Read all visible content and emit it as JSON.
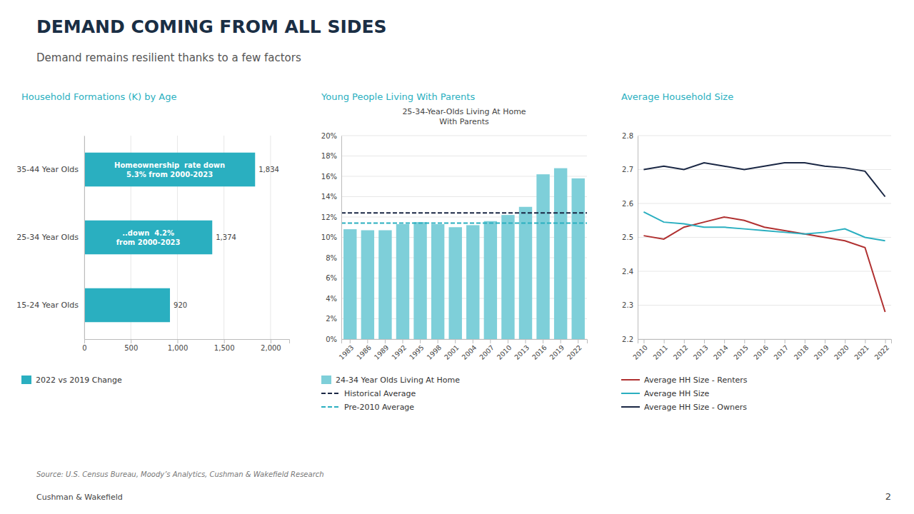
{
  "title": "DEMAND COMING FROM ALL SIDES",
  "subtitle": "Demand remains resilient thanks to a few factors",
  "annotations": [
    "Source: U.S. Census Bureau, Moody’s Analytics, Cushman & Wakefield Research",
    "Cushman & Wakefield",
    "2"
  ],
  "chart_data": [
    {
      "type": "bar",
      "orientation": "horizontal",
      "title": "Household Formations (K) by Age",
      "categories": [
        "35-44 Year Olds",
        "25-34 Year Olds",
        "15-24 Year Olds"
      ],
      "series": [
        {
          "name": "2022 vs 2019 Change",
          "color": "#2aafc0",
          "values": [
            1834,
            1374,
            920
          ],
          "value_labels": [
            "1,834",
            "1,374",
            "920"
          ]
        }
      ],
      "xlim": [
        0,
        2200
      ],
      "xticks": [
        0,
        500,
        {
          "value": 1000,
          "label": "1,000"
        },
        {
          "value": 1500,
          "label": "1,500"
        },
        {
          "value": 2000,
          "label": "2,000"
        }
      ],
      "grid": true,
      "legend": "bottom",
      "data_labels": true,
      "annotations": [
        "Homeownership  rate down\n5.3% from 2000-2023",
        "..down  4.2%\nfrom 2000-2023"
      ]
    },
    {
      "type": "bar",
      "title": "Young People Living With Parents",
      "subtitle": [
        "25-34-Year-Olds Living At Home",
        "With Parents"
      ],
      "categories": [
        "1983",
        "1986",
        "1989",
        "1992",
        "1995",
        "1998",
        "2001",
        "2004",
        "2007",
        "2010",
        "2013",
        "2016",
        "2019",
        "2022"
      ],
      "series": [
        {
          "name": "24-34 Year Olds Living At Home",
          "color": "#7ecfd9",
          "values": [
            0.108,
            0.107,
            0.107,
            0.113,
            0.115,
            0.113,
            0.11,
            0.112,
            0.116,
            0.122,
            0.13,
            0.162,
            0.168,
            0.158
          ]
        }
      ],
      "reference_lines": [
        {
          "name": "Historical Average",
          "value": 0.124,
          "color": "#1a2744",
          "line_style": "dashed"
        },
        {
          "name": "Pre-2010 Average",
          "value": 0.114,
          "color": "#2aafc0",
          "line_style": "dashed"
        }
      ],
      "ylim": [
        0,
        0.2
      ],
      "yticks": [
        {
          "value": 0,
          "label": "0%"
        },
        {
          "value": 0.02,
          "label": "2%"
        },
        {
          "value": 0.04,
          "label": "4%"
        },
        {
          "value": 0.06,
          "label": "6%"
        },
        {
          "value": 0.08,
          "label": "8%"
        },
        {
          "value": 0.1,
          "label": "10%"
        },
        {
          "value": 0.12,
          "label": "12%"
        },
        {
          "value": 0.14,
          "label": "14%"
        },
        {
          "value": 0.16,
          "label": "16%"
        },
        {
          "value": 0.18,
          "label": "18%"
        },
        {
          "value": 0.2,
          "label": "20%"
        }
      ],
      "grid": true,
      "legend": "bottom"
    },
    {
      "type": "line",
      "title": "Average Household Size",
      "x": [
        2010,
        2011,
        2012,
        2013,
        2014,
        2015,
        2016,
        2017,
        2018,
        2019,
        2020,
        2021,
        2022
      ],
      "series": [
        {
          "name": "Average HH Size - Renters",
          "color": "#b03030",
          "values": [
            2.505,
            2.495,
            2.53,
            2.545,
            2.56,
            2.55,
            2.53,
            2.52,
            2.51,
            2.5,
            2.49,
            2.47,
            2.28
          ]
        },
        {
          "name": "Average HH Size",
          "color": "#2aafc0",
          "values": [
            2.575,
            2.545,
            2.54,
            2.53,
            2.53,
            2.525,
            2.52,
            2.515,
            2.51,
            2.515,
            2.525,
            2.5,
            2.49
          ]
        },
        {
          "name": "Average HH Size - Owners",
          "color": "#1a2744",
          "values": [
            2.7,
            2.71,
            2.7,
            2.72,
            2.71,
            2.7,
            2.71,
            2.72,
            2.72,
            2.71,
            2.705,
            2.695,
            2.62
          ]
        }
      ],
      "xlim": [
        2009.7,
        2022.3
      ],
      "xticks": [
        2010,
        2011,
        2012,
        2013,
        2014,
        2015,
        2016,
        2017,
        2018,
        2019,
        2020,
        2021,
        2022
      ],
      "ylim": [
        2.2,
        2.8
      ],
      "yticks": [
        2.2,
        2.3,
        2.4,
        2.5,
        2.6,
        2.7,
        2.8
      ],
      "grid": true,
      "legend": "bottom"
    }
  ]
}
